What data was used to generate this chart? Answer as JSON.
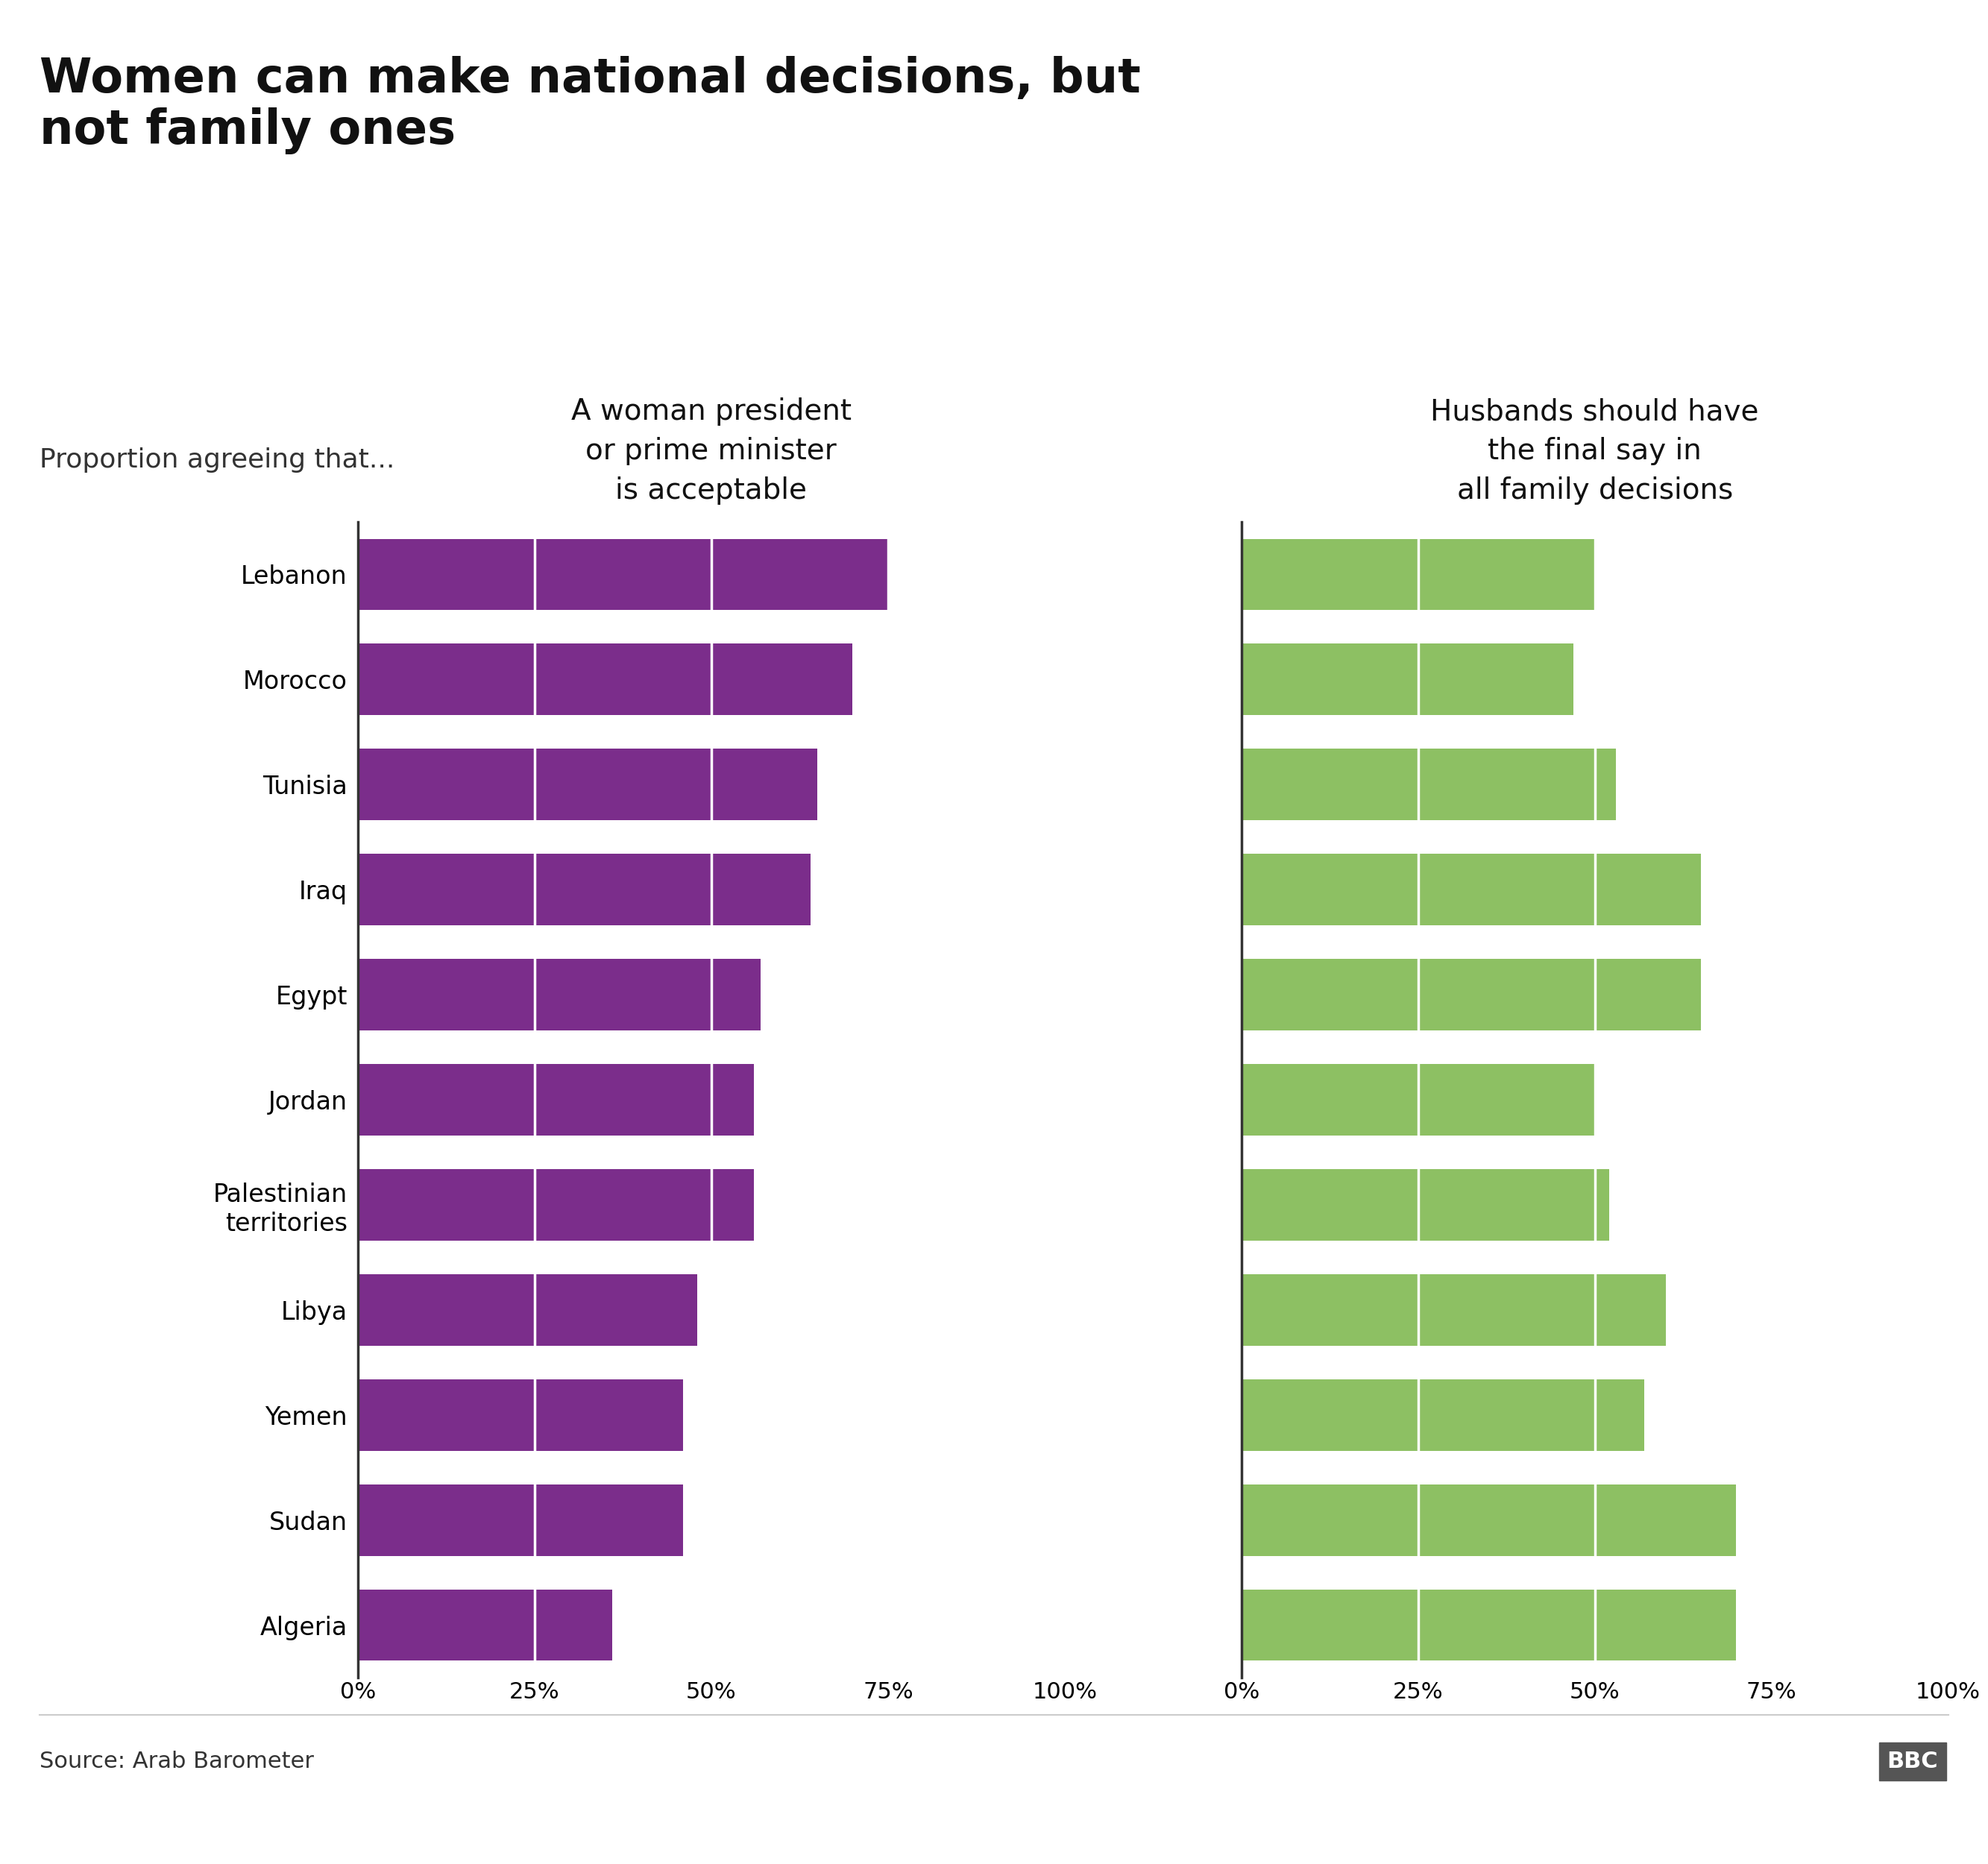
{
  "title": "Women can make national decisions, but\nnot family ones",
  "subtitle": "Proportion agreeing that...",
  "left_title": "A woman president\nor prime minister\nis acceptable",
  "right_title": "Husbands should have\nthe final say in\nall family decisions",
  "countries": [
    "Lebanon",
    "Morocco",
    "Tunisia",
    "Iraq",
    "Egypt",
    "Jordan",
    "Palestinian\nterritories",
    "Libya",
    "Yemen",
    "Sudan",
    "Algeria"
  ],
  "left_values": [
    75,
    70,
    65,
    64,
    57,
    56,
    56,
    48,
    46,
    46,
    36
  ],
  "right_values": [
    50,
    47,
    53,
    65,
    65,
    50,
    52,
    60,
    57,
    70,
    70
  ],
  "left_color": "#7B2D8B",
  "right_color": "#8DC063",
  "source_text": "Source: Arab Barometer",
  "bbc_text": "BBC",
  "background_color": "#FFFFFF",
  "xlim": [
    0,
    100
  ],
  "xticks": [
    0,
    25,
    50,
    75,
    100
  ],
  "xticklabels": [
    "0%",
    "25%",
    "50%",
    "75%",
    "100%"
  ]
}
